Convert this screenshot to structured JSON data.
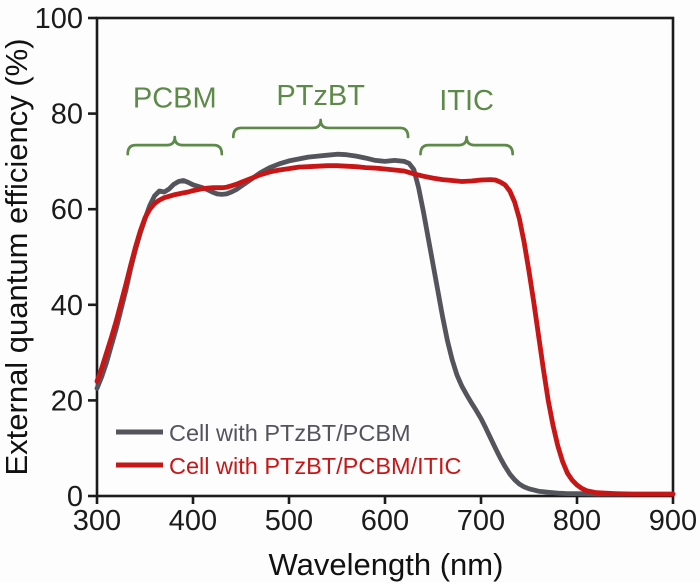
{
  "chart_data": {
    "type": "line",
    "title": "",
    "xlabel": "Wavelength (nm)",
    "ylabel": "External quantum efficiency (%)",
    "xlim": [
      300,
      900
    ],
    "ylim": [
      0,
      100
    ],
    "x_ticks": [
      300,
      400,
      500,
      600,
      700,
      800,
      900
    ],
    "y_ticks": [
      0,
      20,
      40,
      60,
      80,
      100
    ],
    "grid": false,
    "legend_position": "lower-left",
    "annotation_color": "#5d8a48",
    "series": [
      {
        "name": "Cell with PTzBT/PCBM",
        "color": "#54545c",
        "points": [
          [
            300,
            22.5
          ],
          [
            305,
            25
          ],
          [
            310,
            28
          ],
          [
            315,
            31.5
          ],
          [
            320,
            35
          ],
          [
            325,
            39
          ],
          [
            330,
            43
          ],
          [
            335,
            47.5
          ],
          [
            340,
            51.5
          ],
          [
            345,
            55
          ],
          [
            350,
            58
          ],
          [
            355,
            60.8
          ],
          [
            360,
            62.8
          ],
          [
            365,
            63.8
          ],
          [
            370,
            63.6
          ],
          [
            375,
            64.2
          ],
          [
            380,
            65.2
          ],
          [
            385,
            65.8
          ],
          [
            390,
            66.0
          ],
          [
            395,
            65.6
          ],
          [
            400,
            65.1
          ],
          [
            405,
            64.8
          ],
          [
            410,
            64.5
          ],
          [
            415,
            64.1
          ],
          [
            420,
            63.6
          ],
          [
            425,
            63.2
          ],
          [
            430,
            63.1
          ],
          [
            435,
            63.2
          ],
          [
            440,
            63.6
          ],
          [
            445,
            64.1
          ],
          [
            450,
            64.8
          ],
          [
            460,
            66.2
          ],
          [
            470,
            67.6
          ],
          [
            480,
            68.7
          ],
          [
            490,
            69.5
          ],
          [
            500,
            70.1
          ],
          [
            510,
            70.5
          ],
          [
            520,
            70.9
          ],
          [
            530,
            71.1
          ],
          [
            540,
            71.3
          ],
          [
            550,
            71.5
          ],
          [
            560,
            71.4
          ],
          [
            570,
            71.1
          ],
          [
            580,
            70.7
          ],
          [
            590,
            70.2
          ],
          [
            600,
            70.0
          ],
          [
            610,
            70.2
          ],
          [
            620,
            70.0
          ],
          [
            625,
            69.6
          ],
          [
            630,
            68.3
          ],
          [
            635,
            64.5
          ],
          [
            640,
            59.5
          ],
          [
            645,
            54
          ],
          [
            650,
            48.5
          ],
          [
            655,
            43
          ],
          [
            660,
            37.5
          ],
          [
            665,
            32.5
          ],
          [
            670,
            28.5
          ],
          [
            675,
            25.3
          ],
          [
            680,
            23.0
          ],
          [
            685,
            21.2
          ],
          [
            690,
            19.5
          ],
          [
            695,
            17.9
          ],
          [
            700,
            16.2
          ],
          [
            705,
            14.2
          ],
          [
            710,
            12.1
          ],
          [
            715,
            10.0
          ],
          [
            720,
            8.0
          ],
          [
            725,
            6.2
          ],
          [
            730,
            4.6
          ],
          [
            735,
            3.4
          ],
          [
            740,
            2.5
          ],
          [
            745,
            1.9
          ],
          [
            750,
            1.5
          ],
          [
            760,
            1.0
          ],
          [
            770,
            0.8
          ],
          [
            780,
            0.6
          ],
          [
            790,
            0.5
          ],
          [
            800,
            0.5
          ],
          [
            820,
            0.4
          ],
          [
            840,
            0.4
          ],
          [
            860,
            0.4
          ],
          [
            880,
            0.4
          ],
          [
            900,
            0.4
          ]
        ]
      },
      {
        "name": "Cell with PTzBT/PCBM/ITIC",
        "color": "#c81616",
        "points": [
          [
            300,
            24
          ],
          [
            305,
            26.8
          ],
          [
            310,
            30
          ],
          [
            315,
            33.2
          ],
          [
            320,
            36.6
          ],
          [
            325,
            40.4
          ],
          [
            330,
            44.2
          ],
          [
            335,
            48.2
          ],
          [
            340,
            52
          ],
          [
            345,
            55.4
          ],
          [
            350,
            58.2
          ],
          [
            355,
            60
          ],
          [
            360,
            61.2
          ],
          [
            365,
            61.9
          ],
          [
            370,
            62.4
          ],
          [
            375,
            62.7
          ],
          [
            380,
            63.0
          ],
          [
            385,
            63.2
          ],
          [
            390,
            63.4
          ],
          [
            395,
            63.6
          ],
          [
            400,
            63.9
          ],
          [
            405,
            64.1
          ],
          [
            410,
            64.3
          ],
          [
            415,
            64.4
          ],
          [
            420,
            64.5
          ],
          [
            425,
            64.5
          ],
          [
            430,
            64.5
          ],
          [
            435,
            64.6
          ],
          [
            440,
            64.9
          ],
          [
            445,
            65.2
          ],
          [
            450,
            65.6
          ],
          [
            460,
            66.4
          ],
          [
            470,
            67.2
          ],
          [
            480,
            67.8
          ],
          [
            490,
            68.2
          ],
          [
            500,
            68.5
          ],
          [
            510,
            68.8
          ],
          [
            520,
            68.9
          ],
          [
            530,
            69.0
          ],
          [
            540,
            69.1
          ],
          [
            550,
            69.1
          ],
          [
            560,
            69.0
          ],
          [
            570,
            68.9
          ],
          [
            580,
            68.7
          ],
          [
            590,
            68.6
          ],
          [
            600,
            68.4
          ],
          [
            610,
            68.2
          ],
          [
            620,
            68.0
          ],
          [
            630,
            67.4
          ],
          [
            640,
            66.9
          ],
          [
            650,
            66.5
          ],
          [
            660,
            66.2
          ],
          [
            670,
            66.0
          ],
          [
            680,
            65.8
          ],
          [
            690,
            65.9
          ],
          [
            700,
            66.1
          ],
          [
            710,
            66.2
          ],
          [
            715,
            66.1
          ],
          [
            720,
            65.7
          ],
          [
            725,
            65.1
          ],
          [
            730,
            63.8
          ],
          [
            735,
            61.5
          ],
          [
            740,
            58
          ],
          [
            745,
            53
          ],
          [
            750,
            47
          ],
          [
            755,
            40.5
          ],
          [
            760,
            33.5
          ],
          [
            765,
            26.5
          ],
          [
            770,
            20
          ],
          [
            775,
            14.8
          ],
          [
            780,
            10.5
          ],
          [
            785,
            7.2
          ],
          [
            790,
            4.8
          ],
          [
            795,
            3.3
          ],
          [
            800,
            2.3
          ],
          [
            805,
            1.6
          ],
          [
            810,
            1.1
          ],
          [
            820,
            0.7
          ],
          [
            840,
            0.5
          ],
          [
            860,
            0.4
          ],
          [
            880,
            0.4
          ],
          [
            900,
            0.4
          ]
        ]
      }
    ],
    "annotations": [
      {
        "label": "PCBM",
        "x_start": 332,
        "x_end": 430,
        "bracket_y_pct": 73.4,
        "label_y_pct": 81.3
      },
      {
        "label": "PTzBT",
        "x_start": 442,
        "x_end": 624,
        "bracket_y_pct": 77.0,
        "label_y_pct": 81.8
      },
      {
        "label": "ITIC",
        "x_start": 637,
        "x_end": 733,
        "bracket_y_pct": 73.4,
        "label_y_pct": 80.8
      }
    ],
    "legend": {
      "items": [
        {
          "label": "Cell with PTzBT/PCBM",
          "color": "#54545c"
        },
        {
          "label": "Cell with PTzBT/PCBM/ITIC",
          "color": "#c81616"
        }
      ]
    }
  }
}
